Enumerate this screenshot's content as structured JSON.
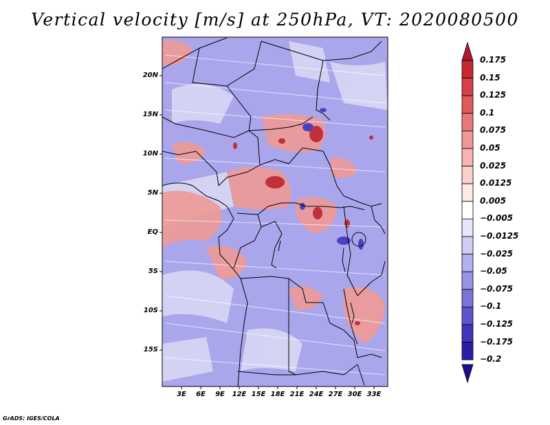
{
  "title": "Vertical velocity [m/s] at 250hPa, VT: 2020080500",
  "credit": "GrADS: IGES/COLA",
  "lat_labels": [
    "20N",
    "15N",
    "10N",
    "5N",
    "EQ",
    "5S",
    "10S",
    "15S"
  ],
  "lon_labels": [
    "3E",
    "6E",
    "9E",
    "12E",
    "15E",
    "18E",
    "21E",
    "24E",
    "27E",
    "30E",
    "33E"
  ],
  "colorbar": {
    "levels": [
      "0.175",
      "0.15",
      "0.125",
      "0.1",
      "0.075",
      "0.05",
      "0.025",
      "0.0125",
      "0.005",
      "-0.005",
      "-0.0125",
      "-0.025",
      "-0.05",
      "-0.075",
      "-0.1",
      "-0.125",
      "-0.175",
      "-0.2"
    ],
    "colors": [
      "#b2182b",
      "#c62a2f",
      "#d6404b",
      "#e05a5a",
      "#e8787a",
      "#ef9896",
      "#f5b5b2",
      "#f9d0cc",
      "#fde9e6",
      "#ffffff",
      "#e6e6fa",
      "#cfcdf5",
      "#b3b0ef",
      "#9893e6",
      "#7b74db",
      "#5e55cd",
      "#4035bb",
      "#2a1ea8",
      "#1a0f8c"
    ]
  },
  "regions": {
    "negative": "#9a97ea",
    "positive": "#ef9a96",
    "strong_positive": "#c8323a",
    "strong_negative": "#4a40c0",
    "boundary": "#000000"
  }
}
